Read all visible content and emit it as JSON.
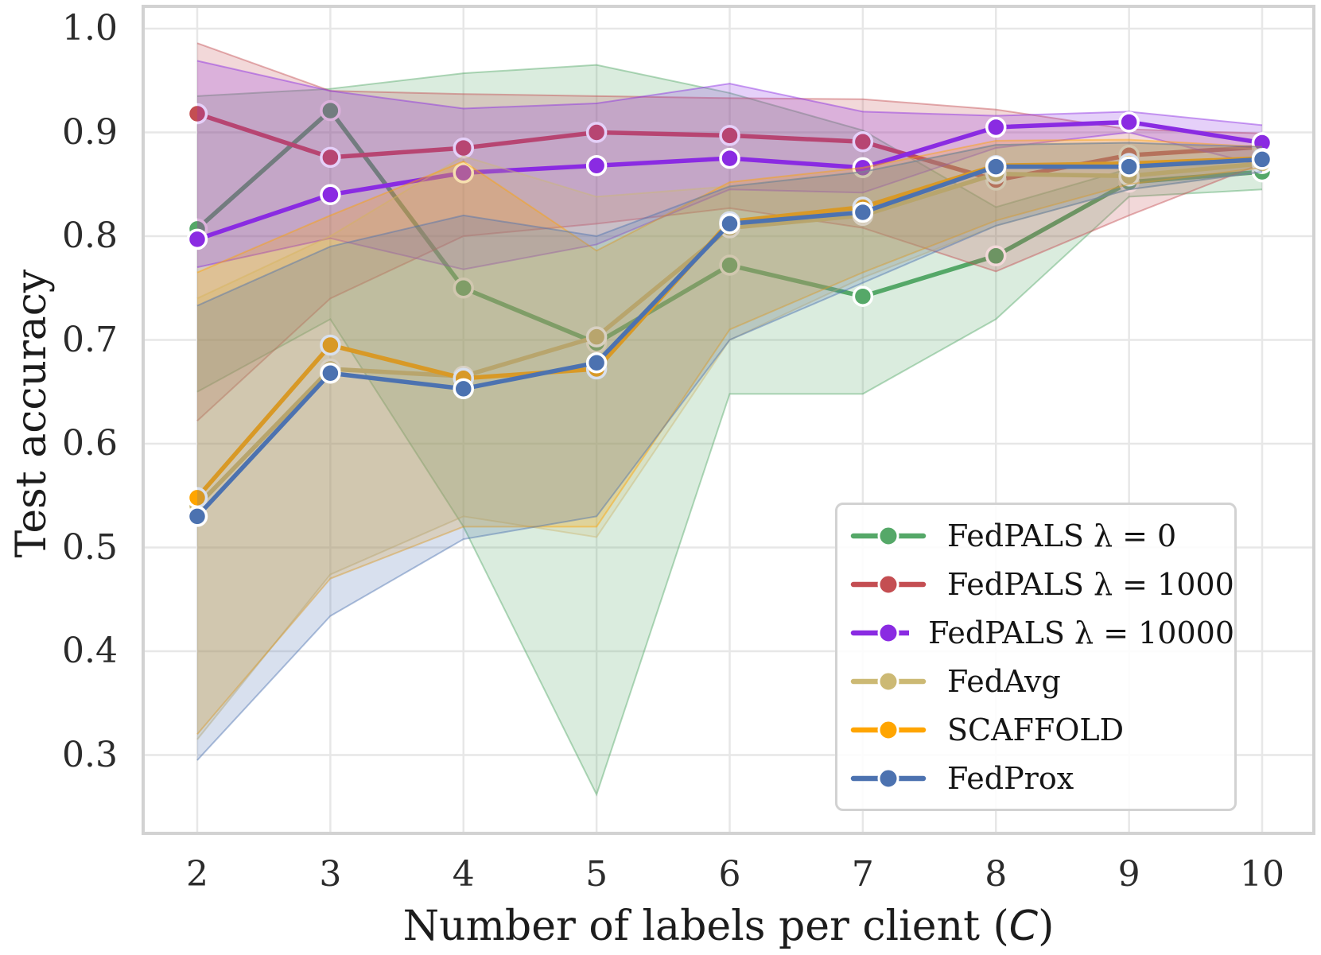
{
  "figure": {
    "type": "matplotlib-style line chart with confidence bands",
    "background_color": "#ffffff",
    "grid_color": "#e7e7e7",
    "spine_color": "#d2d2d2",
    "marker_edge_color": "#ffffff"
  },
  "chart_data": {
    "type": "line",
    "title": "",
    "xlabel": "Number of labels per client (C)",
    "xlabel_parts": {
      "prefix": "Number of labels per client (",
      "variable": "C",
      "suffix": ")"
    },
    "ylabel": "Test accuracy",
    "x": [
      2,
      3,
      4,
      5,
      6,
      7,
      8,
      9,
      10
    ],
    "xticks": [
      "2",
      "3",
      "4",
      "5",
      "6",
      "7",
      "8",
      "9",
      "10"
    ],
    "yticks": [
      "1.0",
      "0.9",
      "0.8",
      "0.7",
      "0.6",
      "0.5",
      "0.4",
      "0.3"
    ],
    "ytick_values": [
      1.0,
      0.9,
      0.8,
      0.7,
      0.6,
      0.5,
      0.4,
      0.3
    ],
    "xlim": [
      1.594,
      10.388
    ],
    "ylim": [
      0.2245,
      1.0215
    ],
    "grid": true,
    "legend_position": "lower right",
    "series": [
      {
        "name": "FedPALS λ = 0",
        "color": "#55a868",
        "values": [
          0.807,
          0.921,
          0.75,
          0.697,
          0.772,
          0.742,
          0.781,
          0.852,
          0.862
        ],
        "band_lower": [
          0.65,
          0.72,
          0.52,
          0.262,
          0.648,
          0.648,
          0.72,
          0.838,
          0.845
        ],
        "band_upper": [
          0.935,
          0.942,
          0.957,
          0.965,
          0.938,
          0.902,
          0.828,
          0.865,
          0.876
        ]
      },
      {
        "name": "FedPALS λ = 1000",
        "color": "#c44e52",
        "values": [
          0.918,
          0.876,
          0.885,
          0.9,
          0.897,
          0.891,
          0.854,
          0.878,
          0.886
        ],
        "band_lower": [
          0.622,
          0.74,
          0.8,
          0.812,
          0.827,
          0.808,
          0.766,
          0.82,
          0.87
        ],
        "band_upper": [
          0.986,
          0.94,
          0.937,
          0.935,
          0.933,
          0.932,
          0.922,
          0.903,
          0.899
        ]
      },
      {
        "name": "FedPALS λ = 10000",
        "color": "#8a2be2",
        "values": [
          0.797,
          0.84,
          0.861,
          0.868,
          0.875,
          0.866,
          0.905,
          0.91,
          0.89
        ],
        "band_lower": [
          0.77,
          0.798,
          0.768,
          0.792,
          0.845,
          0.842,
          0.885,
          0.9,
          0.868
        ],
        "band_upper": [
          0.969,
          0.94,
          0.923,
          0.928,
          0.947,
          0.92,
          0.916,
          0.92,
          0.907
        ]
      },
      {
        "name": "FedAvg",
        "color": "#ccb974",
        "values": [
          0.54,
          0.672,
          0.665,
          0.703,
          0.808,
          0.82,
          0.86,
          0.858,
          0.87
        ],
        "band_lower": [
          0.315,
          0.474,
          0.53,
          0.51,
          0.7,
          0.76,
          0.81,
          0.845,
          0.862
        ],
        "band_upper": [
          0.74,
          0.8,
          0.877,
          0.838,
          0.848,
          0.862,
          0.888,
          0.89,
          0.884
        ]
      },
      {
        "name": "SCAFFOLD",
        "color": "#ffa500",
        "values": [
          0.548,
          0.695,
          0.663,
          0.672,
          0.814,
          0.828,
          0.868,
          0.87,
          0.875
        ],
        "band_lower": [
          0.32,
          0.47,
          0.52,
          0.52,
          0.71,
          0.765,
          0.815,
          0.85,
          0.866
        ],
        "band_upper": [
          0.765,
          0.82,
          0.872,
          0.786,
          0.852,
          0.866,
          0.892,
          0.893,
          0.886
        ]
      },
      {
        "name": "FedProx",
        "color": "#4c72b0",
        "values": [
          0.53,
          0.668,
          0.653,
          0.678,
          0.812,
          0.823,
          0.867,
          0.867,
          0.874
        ],
        "band_lower": [
          0.295,
          0.434,
          0.508,
          0.53,
          0.7,
          0.755,
          0.81,
          0.845,
          0.862
        ],
        "band_upper": [
          0.733,
          0.79,
          0.82,
          0.8,
          0.848,
          0.862,
          0.888,
          0.89,
          0.886
        ]
      }
    ]
  }
}
